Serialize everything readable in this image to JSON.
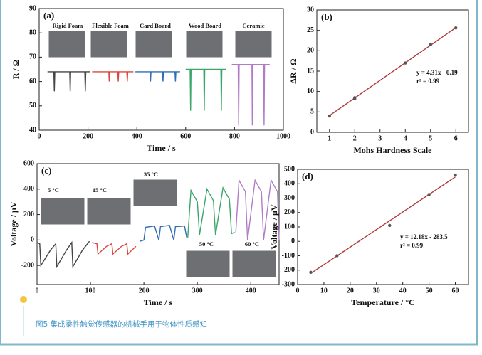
{
  "chart_data": [
    {
      "type": "line",
      "label": "(a)",
      "xlabel": "Time / s",
      "ylabel": "R / Ω",
      "xlim": [
        0,
        1000
      ],
      "xticks": [
        0,
        200,
        400,
        600,
        800,
        1000
      ],
      "ylim": [
        40,
        90
      ],
      "yticks": [
        40,
        50,
        60,
        70,
        80,
        90
      ],
      "annotations": [
        "Rigid Foam",
        "Flexible Foam",
        "Card Board",
        "Wood Board",
        "Ceramic"
      ],
      "series": [
        {
          "color": "#444444",
          "x": [
            34,
            60,
            62,
            64,
            125,
            127,
            129,
            187,
            189,
            191,
            208
          ],
          "values": [
            64,
            64,
            56,
            64,
            64,
            56,
            64,
            64,
            56,
            64,
            64
          ]
        },
        {
          "color": "#d9473f",
          "x": [
            217,
            285,
            287,
            289,
            322,
            324,
            326,
            359,
            361,
            363,
            386
          ],
          "values": [
            64,
            64,
            60,
            64,
            64,
            60,
            64,
            64,
            60,
            64,
            64
          ]
        },
        {
          "color": "#2f6db5",
          "x": [
            394,
            454,
            456,
            458,
            505,
            507,
            509,
            556,
            558,
            560,
            577
          ],
          "values": [
            64,
            64,
            60,
            64,
            64,
            60,
            64,
            64,
            60,
            64,
            64
          ]
        },
        {
          "color": "#3aa66a",
          "x": [
            600,
            618,
            620,
            622,
            674,
            676,
            678,
            744,
            746,
            748,
            766
          ],
          "values": [
            65,
            65,
            48,
            65,
            65,
            48,
            65,
            65,
            48,
            65,
            65
          ]
        },
        {
          "color": "#b07cc6",
          "x": [
            789,
            815,
            817,
            819,
            871,
            873,
            875,
            919,
            921,
            923,
            944
          ],
          "values": [
            67,
            67,
            42,
            67,
            67,
            42,
            67,
            67,
            42,
            67,
            67
          ]
        }
      ]
    },
    {
      "type": "scatter",
      "label": "(b)",
      "xlabel": "Mohs Hardness Scale",
      "ylabel": "ΔR / Ω",
      "xlim": [
        0.5,
        6.5
      ],
      "xticks": [
        1,
        2,
        3,
        4,
        5,
        6
      ],
      "ylim": [
        0,
        30
      ],
      "yticks": [
        0,
        5,
        10,
        15,
        20,
        25,
        30
      ],
      "equation": "y = 4.31x - 0.19",
      "r2": "r² = 0.99",
      "points": {
        "color": "#555555",
        "x": [
          1,
          2,
          2,
          4,
          5,
          6
        ],
        "values": [
          4,
          8.5,
          8.2,
          17,
          21.5,
          25.6
        ]
      },
      "fit": {
        "color": "#b03a3a",
        "x": [
          1,
          6
        ],
        "values": [
          4.12,
          25.67
        ]
      }
    },
    {
      "type": "line",
      "label": "(c)",
      "xlabel": "Time / s",
      "ylabel": "Voltage / μV",
      "xlim": [
        0,
        453
      ],
      "xticks": [
        0,
        100,
        200,
        300,
        400
      ],
      "ylim": [
        -350,
        600
      ],
      "yticks": [
        -200,
        0,
        200,
        400,
        600
      ],
      "annotations": [
        "5 °C",
        "15 °C",
        "35 °C",
        "50 °C",
        "60 °C"
      ],
      "series": [
        {
          "color": "#444444",
          "x": [
            0,
            5,
            7,
            25,
            35,
            37,
            55,
            65,
            67,
            85,
            98
          ],
          "values": [
            -20,
            -30,
            -200,
            -80,
            -30,
            -210,
            -80,
            -20,
            -210,
            -80,
            -10
          ]
        },
        {
          "color": "#d9473f",
          "x": [
            103,
            112,
            114,
            130,
            140,
            142,
            158,
            168,
            170,
            185
          ],
          "values": [
            -20,
            -30,
            -110,
            -50,
            -30,
            -110,
            -50,
            -30,
            -110,
            -50
          ]
        },
        {
          "color": "#2f6db5",
          "x": [
            192,
            200,
            203,
            220,
            228,
            231,
            248,
            256,
            259,
            276,
            280
          ],
          "values": [
            -10,
            0,
            100,
            110,
            0,
            105,
            115,
            0,
            105,
            110,
            20
          ]
        },
        {
          "color": "#3aa66a",
          "x": [
            282,
            288,
            300,
            304,
            318,
            330,
            334,
            348,
            360,
            364,
            370
          ],
          "values": [
            20,
            390,
            300,
            40,
            400,
            310,
            40,
            410,
            320,
            50,
            60
          ]
        },
        {
          "color": "#b07cc6",
          "x": [
            372,
            378,
            390,
            394,
            408,
            420,
            424,
            438,
            450,
            453
          ],
          "values": [
            60,
            470,
            380,
            0,
            470,
            380,
            0,
            470,
            380,
            0
          ]
        }
      ]
    },
    {
      "type": "scatter",
      "label": "(d)",
      "xlabel": "Temperature / °C",
      "ylabel": "Voltage / μV",
      "xlim": [
        0,
        65
      ],
      "xticks": [
        0,
        10,
        20,
        30,
        40,
        50,
        60
      ],
      "ylim": [
        -300,
        500
      ],
      "yticks": [
        -300,
        -200,
        -100,
        0,
        100,
        200,
        300,
        400,
        500
      ],
      "equation": "y = 12.18x - 283.5",
      "r2": "r² = 0.99",
      "points": {
        "color": "#555555",
        "x": [
          5,
          15,
          35,
          50,
          60
        ],
        "values": [
          -215,
          -100,
          110,
          325,
          460
        ]
      },
      "fit": {
        "color": "#b03a3a",
        "x": [
          5,
          60
        ],
        "values": [
          -222.6,
          447.3
        ]
      }
    }
  ],
  "caption": "图5 集成柔性触觉传感器的机械手用于物体性质感知"
}
